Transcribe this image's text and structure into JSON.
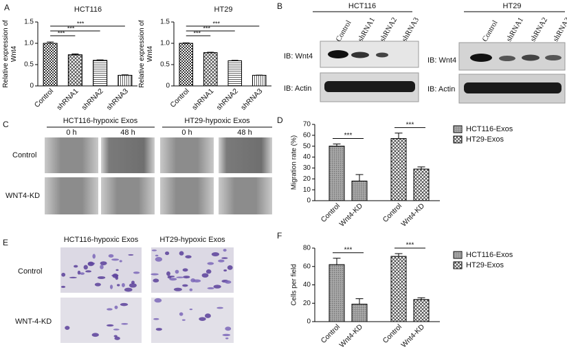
{
  "panel_labels": [
    "A",
    "B",
    "C",
    "D",
    "E",
    "F"
  ],
  "chart_data": [
    {
      "type": "bar",
      "title": "HCT116",
      "ylabel": "Relative expression of Wnt4",
      "categories": [
        "Control",
        "shRNA1",
        "shRNA2",
        "shRNA3"
      ],
      "values": [
        1.0,
        0.73,
        0.6,
        0.25
      ],
      "errors": [
        0.03,
        0.02,
        0.01,
        0.01
      ],
      "significance": [
        null,
        "***",
        "***",
        "***"
      ],
      "color": "#ffffff",
      "ylim": [
        0,
        1.5
      ],
      "yticks": [
        0,
        0.5,
        {
          "value": 1,
          "label": "1.0"
        },
        1.5
      ]
    },
    {
      "type": "bar",
      "title": "HT29",
      "ylabel": "Relative expression of Wnt4",
      "categories": [
        "Control",
        "shRNA1",
        "shRNA2",
        "shRNA3"
      ],
      "values": [
        1.0,
        0.78,
        0.59,
        0.25
      ],
      "errors": [
        0.01,
        0.01,
        0.01,
        0.005
      ],
      "significance": [
        null,
        "***",
        "***",
        "***"
      ],
      "color": "#ffffff",
      "ylim": [
        0,
        1.5
      ],
      "yticks": [
        0,
        0.5,
        {
          "value": 1,
          "label": "1.0"
        },
        1.5
      ]
    },
    {
      "type": "bar",
      "ylabel": "Migration rate (%)",
      "categories": [
        "Control",
        "Wnt4-KD"
      ],
      "series": [
        {
          "name": "HCT116-Exos",
          "color": "#9d9d9d",
          "values": [
            50,
            18
          ],
          "errors": [
            2,
            6
          ],
          "significance": "***"
        },
        {
          "name": "HT29-Exos",
          "color": "#ffffff",
          "values": [
            57,
            29
          ],
          "errors": [
            5,
            2
          ],
          "significance": "***"
        }
      ],
      "ylim": [
        0,
        70
      ],
      "yticks": [
        0,
        10,
        20,
        30,
        40,
        50,
        60,
        70
      ],
      "legend": "right"
    },
    {
      "type": "bar",
      "ylabel": "Cells per field",
      "categories": [
        "Control",
        "Wnt4-KD"
      ],
      "series": [
        {
          "name": "HCT116-Exos",
          "color": "#9d9d9d",
          "values": [
            62,
            19
          ],
          "errors": [
            7,
            6
          ],
          "significance": "***"
        },
        {
          "name": "HT29-Exos",
          "color": "#ffffff",
          "values": [
            71,
            24
          ],
          "errors": [
            3,
            2
          ],
          "significance": "***"
        }
      ],
      "ylim": [
        0,
        80
      ],
      "yticks": [
        0,
        20,
        40,
        60,
        80
      ],
      "legend": "right"
    }
  ],
  "blots": [
    {
      "cell_line": "HCT116",
      "lanes": [
        "Control",
        "shRNA1",
        "shRNA2",
        "shRNA3"
      ],
      "rows": [
        "IB:  Wnt4",
        "IB:  Actin"
      ]
    },
    {
      "cell_line": "HT29",
      "lanes": [
        "Control",
        "shRNA1",
        "shRNA2",
        "shRNA3"
      ],
      "rows": [
        "IB:  Wnt4",
        "IB:  Actin"
      ]
    }
  ],
  "wound": {
    "groups": [
      "HCT116-hypoxic Exos",
      "HT29-hypoxic Exos"
    ],
    "times": [
      "0 h",
      "48 h"
    ],
    "rows": [
      "Control",
      "WNT4-KD"
    ]
  },
  "transwell": {
    "groups": [
      "HCT116-hypoxic Exos",
      "HT29-hypoxic Exos"
    ],
    "rows": [
      "Control",
      "WNT-4-KD"
    ]
  }
}
